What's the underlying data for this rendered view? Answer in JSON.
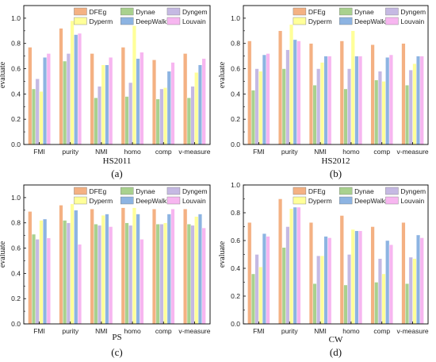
{
  "chart_data": [
    {
      "type": "bar",
      "panel_label": "(a)",
      "xlabel": "HS2011",
      "ylabel": "evaluate",
      "ylim": [
        0,
        1.1
      ],
      "yticks": [
        "0.0",
        "0.2",
        "0.4",
        "0.6",
        "0.8",
        "1.0"
      ],
      "categories": [
        "FMI",
        "purity",
        "NMI",
        "homo",
        "comp",
        "v-measure"
      ],
      "legend_position": "top-right",
      "series": [
        {
          "name": "DFEg",
          "color": "#f4b183",
          "values": [
            0.77,
            0.92,
            0.72,
            0.77,
            0.67,
            0.72
          ]
        },
        {
          "name": "Dynae",
          "color": "#a9d18e",
          "values": [
            0.44,
            0.66,
            0.37,
            0.38,
            0.36,
            0.37
          ]
        },
        {
          "name": "Dyngem",
          "color": "#c5b9e3",
          "values": [
            0.52,
            0.72,
            0.46,
            0.49,
            0.44,
            0.46
          ]
        },
        {
          "name": "Dyperm",
          "color": "#ffff99",
          "values": [
            0.42,
            0.98,
            0.63,
            0.94,
            0.45,
            0.57
          ]
        },
        {
          "name": "DeepWalk",
          "color": "#8db4e2",
          "values": [
            0.69,
            0.87,
            0.63,
            0.68,
            0.58,
            0.63
          ]
        },
        {
          "name": "Louvain",
          "color": "#f7b6f0",
          "values": [
            0.72,
            0.88,
            0.69,
            0.73,
            0.65,
            0.68
          ]
        }
      ]
    },
    {
      "type": "bar",
      "panel_label": "(b)",
      "xlabel": "HS2012",
      "ylabel": "evaluate",
      "ylim": [
        0,
        1.1
      ],
      "yticks": [
        "0.0",
        "0.2",
        "0.4",
        "0.6",
        "0.8",
        "1.0"
      ],
      "categories": [
        "FMI",
        "purity",
        "NMI",
        "homo",
        "comp",
        "v-measure"
      ],
      "legend_position": "top-right",
      "series": [
        {
          "name": "DFEg",
          "color": "#f4b183",
          "values": [
            0.82,
            0.9,
            0.8,
            0.82,
            0.79,
            0.8
          ]
        },
        {
          "name": "Dynae",
          "color": "#a9d18e",
          "values": [
            0.43,
            0.6,
            0.47,
            0.44,
            0.51,
            0.47
          ]
        },
        {
          "name": "Dyngem",
          "color": "#c5b9e3",
          "values": [
            0.6,
            0.75,
            0.6,
            0.6,
            0.58,
            0.59
          ]
        },
        {
          "name": "Dyperm",
          "color": "#ffff99",
          "values": [
            0.58,
            0.95,
            0.65,
            0.9,
            0.5,
            0.64
          ]
        },
        {
          "name": "DeepWalk",
          "color": "#8db4e2",
          "values": [
            0.71,
            0.83,
            0.7,
            0.7,
            0.69,
            0.7
          ]
        },
        {
          "name": "Louvain",
          "color": "#f7b6f0",
          "values": [
            0.72,
            0.82,
            0.7,
            0.7,
            0.71,
            0.7
          ]
        }
      ]
    },
    {
      "type": "bar",
      "panel_label": "(c)",
      "xlabel": "PS",
      "ylabel": "evaluate",
      "ylim": [
        0,
        1.1
      ],
      "yticks": [
        "0.0",
        "0.2",
        "0.4",
        "0.6",
        "0.8",
        "1.0"
      ],
      "categories": [
        "FMI",
        "purity",
        "NMI",
        "homo",
        "comp",
        "v-measure"
      ],
      "legend_position": "top-right",
      "series": [
        {
          "name": "DFEg",
          "color": "#f4b183",
          "values": [
            0.89,
            0.94,
            0.91,
            0.92,
            0.91,
            0.91
          ]
        },
        {
          "name": "Dynae",
          "color": "#a9d18e",
          "values": [
            0.71,
            0.82,
            0.79,
            0.8,
            0.79,
            0.79
          ]
        },
        {
          "name": "Dyngem",
          "color": "#c5b9e3",
          "values": [
            0.67,
            0.8,
            0.78,
            0.78,
            0.79,
            0.78
          ]
        },
        {
          "name": "Dyperm",
          "color": "#ffff99",
          "values": [
            0.82,
            0.95,
            0.86,
            0.92,
            0.8,
            0.85
          ]
        },
        {
          "name": "DeepWalk",
          "color": "#8db4e2",
          "values": [
            0.83,
            0.9,
            0.87,
            0.87,
            0.87,
            0.87
          ]
        },
        {
          "name": "Louvain",
          "color": "#f7b6f0",
          "values": [
            0.68,
            0.63,
            0.77,
            0.67,
            0.91,
            0.76
          ]
        }
      ]
    },
    {
      "type": "bar",
      "panel_label": "(d)",
      "xlabel": "CW",
      "ylabel": "evaluate",
      "ylim": [
        0,
        1.0
      ],
      "yticks": [
        "0.0",
        "0.2",
        "0.4",
        "0.6",
        "0.8",
        "1.0"
      ],
      "categories": [
        "FMI",
        "purity",
        "NMI",
        "homo",
        "comp",
        "v-measure"
      ],
      "legend_position": "top-right",
      "series": [
        {
          "name": "DFEg",
          "color": "#f4b183",
          "values": [
            0.73,
            0.9,
            0.73,
            0.78,
            0.7,
            0.73
          ]
        },
        {
          "name": "Dynae",
          "color": "#a9d18e",
          "values": [
            0.36,
            0.55,
            0.29,
            0.28,
            0.3,
            0.29
          ]
        },
        {
          "name": "Dyngem",
          "color": "#c5b9e3",
          "values": [
            0.5,
            0.7,
            0.49,
            0.5,
            0.47,
            0.48
          ]
        },
        {
          "name": "Dyperm",
          "color": "#ffff99",
          "values": [
            0.41,
            0.83,
            0.49,
            0.68,
            0.36,
            0.47
          ]
        },
        {
          "name": "DeepWalk",
          "color": "#8db4e2",
          "values": [
            0.65,
            0.84,
            0.63,
            0.67,
            0.6,
            0.64
          ]
        },
        {
          "name": "Louvain",
          "color": "#f7b6f0",
          "values": [
            0.63,
            0.84,
            0.62,
            0.67,
            0.57,
            0.62
          ]
        }
      ]
    }
  ]
}
